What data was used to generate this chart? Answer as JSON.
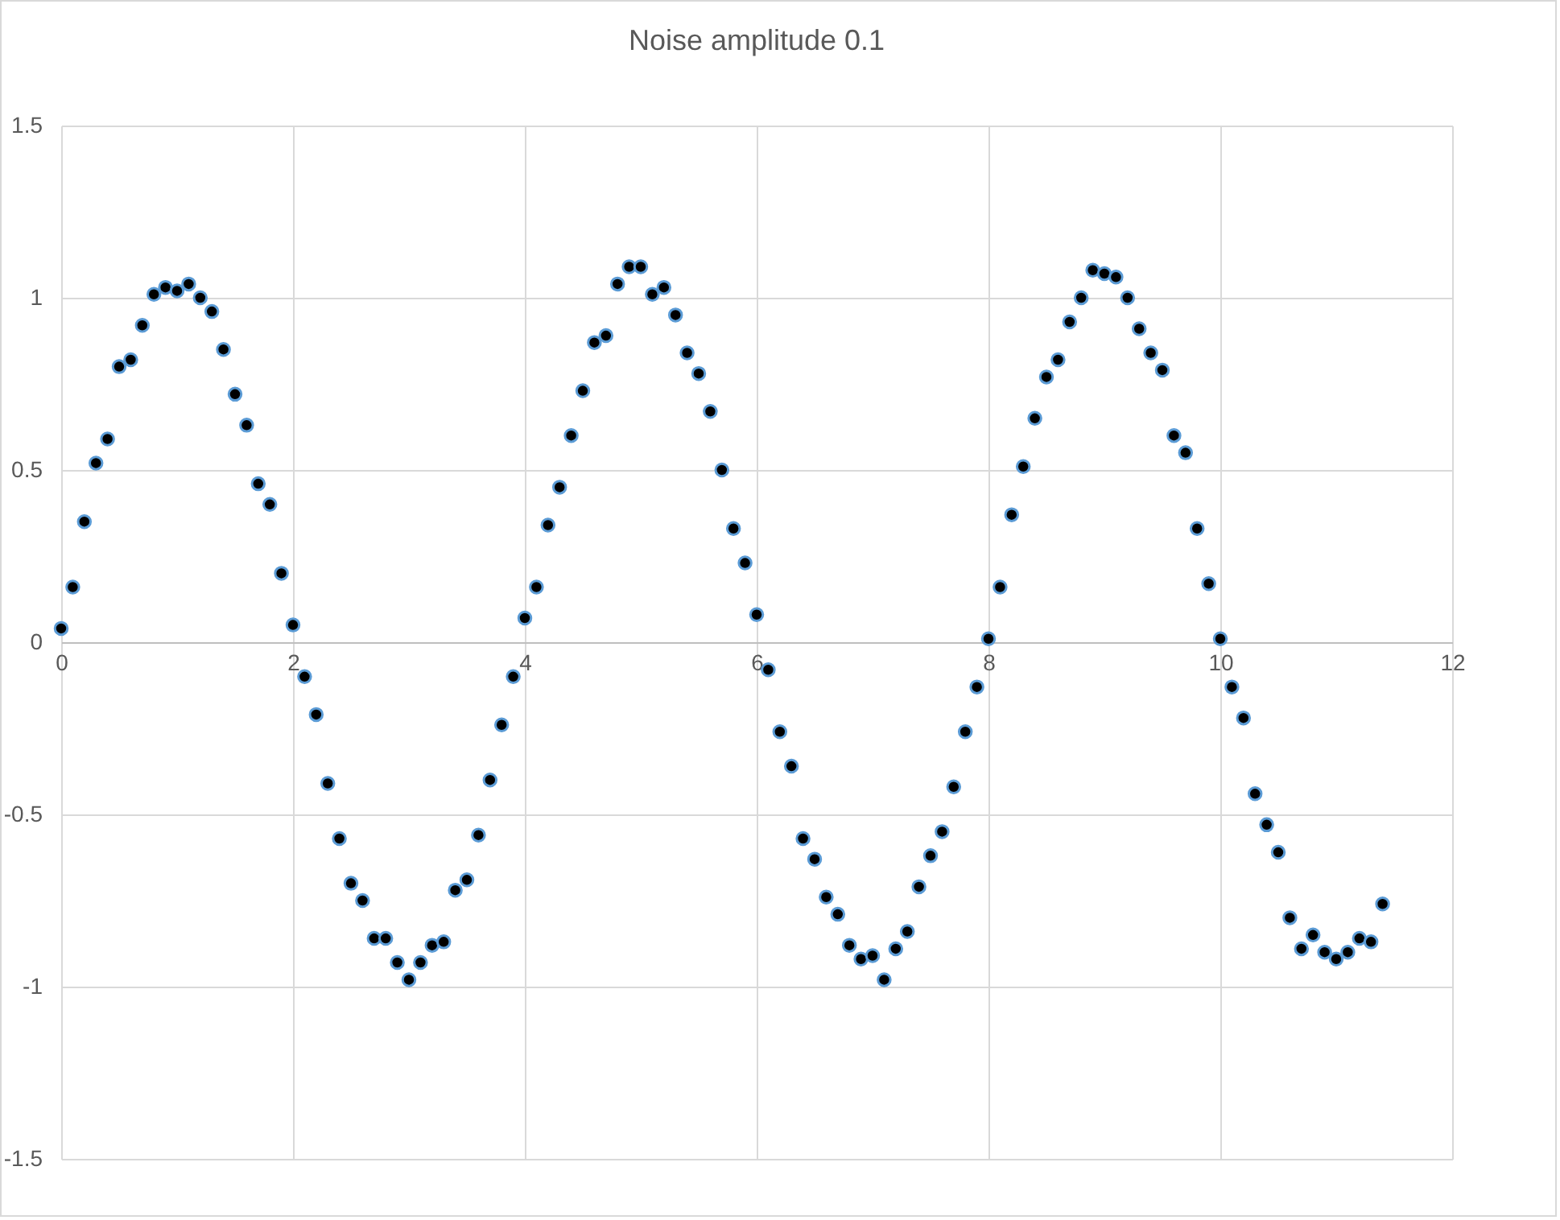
{
  "chart_data": {
    "type": "scatter",
    "title": "Noise amplitude 0.1",
    "x": [
      0,
      0.1,
      0.2,
      0.3,
      0.4,
      0.5,
      0.6,
      0.7,
      0.8,
      0.9,
      1,
      1.1,
      1.2,
      1.3,
      1.4,
      1.5,
      1.6,
      1.7,
      1.8,
      1.9,
      2,
      2.1,
      2.2,
      2.3,
      2.4,
      2.5,
      2.6,
      2.7,
      2.8,
      2.9,
      3,
      3.1,
      3.2,
      3.3,
      3.4,
      3.5,
      3.6,
      3.7,
      3.8,
      3.9,
      4,
      4.1,
      4.2,
      4.3,
      4.4,
      4.5,
      4.6,
      4.7,
      4.8,
      4.9,
      5,
      5.1,
      5.2,
      5.3,
      5.4,
      5.5,
      5.6,
      5.7,
      5.8,
      5.9,
      6,
      6.1,
      6.2,
      6.3,
      6.4,
      6.5,
      6.6,
      6.7,
      6.8,
      6.9,
      7,
      7.1,
      7.2,
      7.3,
      7.4,
      7.5,
      7.6,
      7.7,
      7.8,
      7.9,
      8,
      8.1,
      8.2,
      8.3,
      8.4,
      8.5,
      8.6,
      8.7,
      8.8,
      8.9,
      9,
      9.1,
      9.2,
      9.3,
      9.4,
      9.5,
      9.6,
      9.7,
      9.8,
      9.9,
      10,
      10.1,
      10.2,
      10.3,
      10.4,
      10.5,
      10.6,
      10.7,
      10.8,
      10.9,
      11,
      11.1,
      11.2,
      11.3,
      11.4
    ],
    "series": [
      {
        "color": "#000000",
        "values": [
          0.04,
          0.16,
          0.35,
          0.52,
          0.59,
          0.8,
          0.82,
          0.92,
          1.01,
          1.03,
          1.02,
          1.04,
          1,
          0.96,
          0.85,
          0.72,
          0.63,
          0.46,
          0.4,
          0.2,
          0.05,
          -0.1,
          -0.21,
          -0.41,
          -0.57,
          -0.7,
          -0.75,
          -0.86,
          -0.86,
          -0.93,
          -0.98,
          -0.93,
          -0.88,
          -0.87,
          -0.72,
          -0.69,
          -0.56,
          -0.4,
          -0.24,
          -0.1,
          0.07,
          0.16,
          0.34,
          0.45,
          0.6,
          0.73,
          0.87,
          0.89,
          1.04,
          1.09,
          1.09,
          1.01,
          1.03,
          0.95,
          0.84,
          0.78,
          0.67,
          0.5,
          0.33,
          0.23,
          0.08,
          -0.08,
          -0.26,
          -0.36,
          -0.57,
          -0.63,
          -0.74,
          -0.79,
          -0.88,
          -0.92,
          -0.91,
          -0.98,
          -0.89,
          -0.84,
          -0.71,
          -0.62,
          -0.55,
          -0.42,
          -0.26,
          -0.13,
          0.01,
          0.16,
          0.37,
          0.51,
          0.65,
          0.77,
          0.82,
          0.93,
          1,
          1.08,
          1.07,
          1.06,
          1,
          0.91,
          0.84,
          0.79,
          0.6,
          0.55,
          0.33,
          0.17,
          0.01,
          -0.13,
          -0.22,
          -0.44,
          -0.53,
          -0.61,
          -0.8,
          -0.89,
          -0.85,
          -0.9,
          -0.92,
          -0.9,
          -0.86,
          -0.87,
          -0.76
        ]
      }
    ],
    "xlim": [
      0,
      12
    ],
    "xticks": [
      0,
      2,
      4,
      6,
      8,
      10,
      12
    ],
    "ylim": [
      -1.5,
      1.5
    ],
    "yticks": [
      -1.5,
      -1,
      -0.5,
      0,
      0.5,
      1,
      1.5
    ],
    "grid": true,
    "marker": "circle",
    "legend": false
  }
}
